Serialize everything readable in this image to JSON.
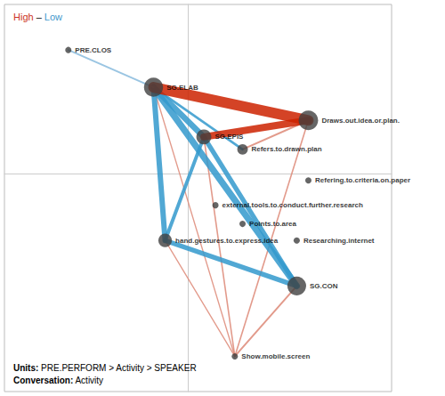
{
  "chart_data": {
    "type": "network",
    "xlim": [
      -0.95,
      1.05
    ],
    "ylim": [
      -1.05,
      0.82
    ],
    "tick_labels": false,
    "grid": false,
    "color": "#404040",
    "nodes": [
      {
        "name": "PRE.CLOS",
        "x": -0.62,
        "y": 0.6,
        "size": 28
      },
      {
        "name": "SG.ELAB",
        "x": -0.18,
        "y": 0.42,
        "size": 260
      },
      {
        "name": "SG.EPIS",
        "x": 0.08,
        "y": 0.18,
        "size": 160
      },
      {
        "name": "Draws.out.idea.or.plan.",
        "x": 0.62,
        "y": 0.26,
        "size": 270
      },
      {
        "name": "Refers.to.drawn.plan",
        "x": 0.28,
        "y": 0.12,
        "size": 80
      },
      {
        "name": "Refering.to.criteria.on.paper",
        "x": 0.62,
        "y": -0.03,
        "size": 28
      },
      {
        "name": "external.tools.to.conduct.further.research",
        "x": 0.14,
        "y": -0.15,
        "size": 28
      },
      {
        "name": "Points.to.area",
        "x": 0.28,
        "y": -0.24,
        "size": 28
      },
      {
        "name": "hand.gestures.to.express.idea",
        "x": -0.12,
        "y": -0.32,
        "size": 130
      },
      {
        "name": "Researching.internet",
        "x": 0.56,
        "y": -0.32,
        "size": 28
      },
      {
        "name": "SG.CON",
        "x": 0.56,
        "y": -0.54,
        "size": 250
      },
      {
        "name": "Show.mobile.screen",
        "x": 0.24,
        "y": -0.88,
        "size": 28
      }
    ],
    "edges": [
      {
        "from": "SG.CON",
        "to": "Show.mobile.screen",
        "color": "#dd8877",
        "weight": 1.5
      },
      {
        "from": "SG.EPIS",
        "to": "Show.mobile.screen",
        "color": "#dd8877",
        "weight": 1.2
      },
      {
        "from": "Draws.out.idea.or.plan.",
        "to": "Show.mobile.screen",
        "color": "#dd8877",
        "weight": 1.2
      },
      {
        "from": "SG.ELAB",
        "to": "Show.mobile.screen",
        "color": "#dd8877",
        "weight": 1.0
      },
      {
        "from": "hand.gestures.to.express.idea",
        "to": "Show.mobile.screen",
        "color": "#dd8877",
        "weight": 1.0
      },
      {
        "from": "Refers.to.drawn.plan",
        "to": "Draws.out.idea.or.plan.",
        "color": "#dd8877",
        "weight": 1.5
      },
      {
        "from": "SG.ELAB",
        "to": "SG.CON",
        "color": "#3399cc",
        "weight": 5.5
      },
      {
        "from": "SG.ELAB",
        "to": "SG.EPIS",
        "color": "#3399cc",
        "weight": 5.0
      },
      {
        "from": "SG.ELAB",
        "to": "hand.gestures.to.express.idea",
        "color": "#3399cc",
        "weight": 4.5
      },
      {
        "from": "SG.EPIS",
        "to": "SG.CON",
        "color": "#3399cc",
        "weight": 4.0
      },
      {
        "from": "hand.gestures.to.express.idea",
        "to": "SG.CON",
        "color": "#3399cc",
        "weight": 4.0
      },
      {
        "from": "SG.EPIS",
        "to": "hand.gestures.to.express.idea",
        "color": "#3399cc",
        "weight": 3.0
      },
      {
        "from": "SG.ELAB",
        "to": "Refers.to.drawn.plan",
        "color": "#3399cc",
        "weight": 2.0
      },
      {
        "from": "SG.ELAB",
        "to": "PRE.CLOS",
        "color": "#88bbdd",
        "weight": 1.5
      },
      {
        "from": "SG.ELAB",
        "to": "Draws.out.idea.or.plan.",
        "color": "#cc2200",
        "weight": 9.0
      },
      {
        "from": "SG.EPIS",
        "to": "Draws.out.idea.or.plan.",
        "color": "#cc2200",
        "weight": 6.0
      }
    ],
    "annotations": [
      {
        "parts": [
          {
            "text": "High",
            "color": "#cc3322"
          },
          {
            "text": " – "
          },
          {
            "text": "Low",
            "color": "#4499cc"
          }
        ]
      },
      {
        "parts": [
          {
            "text": "Units:"
          },
          {
            "text": " PRE.PERFORM > Activity > SPEAKER"
          }
        ]
      },
      {
        "parts": [
          {
            "text": "Conversation:"
          },
          {
            "text": " Activity"
          }
        ]
      }
    ]
  }
}
